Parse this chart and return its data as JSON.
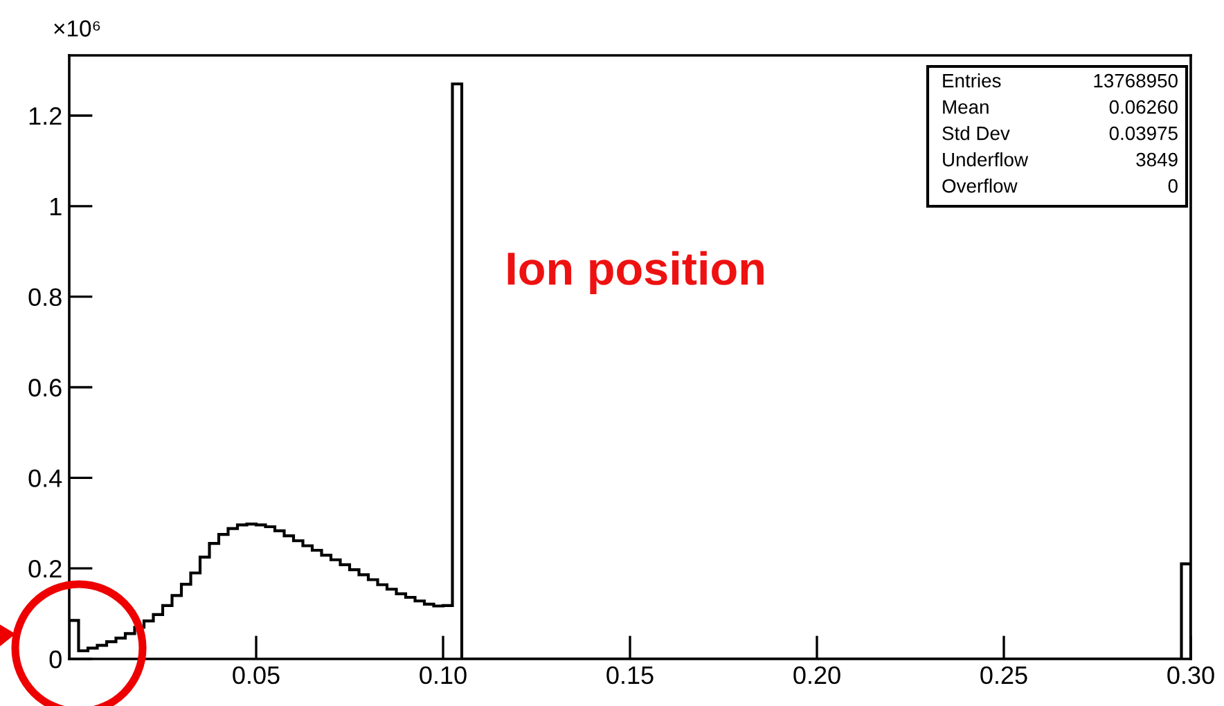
{
  "chart_data": {
    "type": "histogram",
    "bins": [
      0,
      0.0025,
      0.005,
      0.0075,
      0.01,
      0.0125,
      0.015,
      0.0175,
      0.02,
      0.0225,
      0.025,
      0.0275,
      0.03,
      0.0325,
      0.035,
      0.0375,
      0.04,
      0.0425,
      0.045,
      0.0475,
      0.05,
      0.0525,
      0.055,
      0.0575,
      0.06,
      0.0625,
      0.065,
      0.0675,
      0.07,
      0.0725,
      0.075,
      0.0775,
      0.08,
      0.0825,
      0.085,
      0.0875,
      0.09,
      0.0925,
      0.095,
      0.0975,
      0.1,
      0.1025,
      0.105,
      0.1075,
      0.11,
      0.1125,
      0.115,
      0.1175,
      0.12,
      0.1225,
      0.125,
      0.1275,
      0.13,
      0.1325,
      0.135,
      0.1375,
      0.14,
      0.1425,
      0.145,
      0.1475,
      0.15,
      0.1525,
      0.155,
      0.1575,
      0.16,
      0.1625,
      0.165,
      0.1675,
      0.17,
      0.1725,
      0.175,
      0.1775,
      0.18,
      0.1825,
      0.185,
      0.1875,
      0.19,
      0.1925,
      0.195,
      0.1975,
      0.2,
      0.2025,
      0.205,
      0.2075,
      0.21,
      0.2125,
      0.215,
      0.2175,
      0.22,
      0.2225,
      0.225,
      0.2275,
      0.23,
      0.2325,
      0.235,
      0.2375,
      0.24,
      0.2425,
      0.245,
      0.2475,
      0.25,
      0.2525,
      0.255,
      0.2575,
      0.26,
      0.2625,
      0.265,
      0.2675,
      0.27,
      0.2725,
      0.275,
      0.2775,
      0.28,
      0.2825,
      0.285,
      0.2875,
      0.29,
      0.2925,
      0.295,
      0.2975,
      0.3
    ],
    "values": [
      0.085,
      0.018,
      0.024,
      0.03,
      0.038,
      0.046,
      0.056,
      0.07,
      0.084,
      0.098,
      0.118,
      0.14,
      0.165,
      0.19,
      0.225,
      0.255,
      0.275,
      0.288,
      0.296,
      0.298,
      0.296,
      0.292,
      0.283,
      0.272,
      0.261,
      0.25,
      0.24,
      0.229,
      0.219,
      0.208,
      0.197,
      0.186,
      0.175,
      0.164,
      0.154,
      0.144,
      0.136,
      0.128,
      0.121,
      0.117,
      0.118,
      1.27,
      0,
      0,
      0,
      0,
      0,
      0,
      0,
      0,
      0,
      0,
      0,
      0,
      0,
      0,
      0,
      0,
      0,
      0,
      0,
      0,
      0,
      0,
      0,
      0,
      0,
      0,
      0,
      0,
      0,
      0,
      0,
      0,
      0,
      0,
      0,
      0,
      0,
      0,
      0,
      0,
      0,
      0,
      0,
      0,
      0,
      0,
      0,
      0,
      0,
      0,
      0,
      0,
      0,
      0,
      0,
      0,
      0,
      0,
      0,
      0,
      0,
      0,
      0,
      0,
      0,
      0,
      0,
      0,
      0,
      0,
      0,
      0,
      0,
      0,
      0,
      0,
      0,
      0.21
    ],
    "color": "#000000",
    "xlim": [
      0,
      0.3
    ],
    "ylim": [
      0,
      1.333
    ],
    "xticks": [
      {
        "value": 0.05,
        "label": "0.05"
      },
      {
        "value": 0.1,
        "label": "0.10"
      },
      {
        "value": 0.15,
        "label": "0.15"
      },
      {
        "value": 0.2,
        "label": "0.20"
      },
      {
        "value": 0.25,
        "label": "0.25"
      },
      {
        "value": 0.3,
        "label": "0.30"
      }
    ],
    "yticks": [
      0,
      0.2,
      0.4,
      0.6,
      0.8,
      1,
      1.2
    ],
    "grid": false,
    "annotations": [
      "×10⁶",
      "Ion position",
      "Entries",
      "13768950",
      "Mean",
      "0.06260",
      "Std Dev",
      "0.03975",
      "Underflow",
      "3849",
      "Overflow",
      "0"
    ]
  }
}
